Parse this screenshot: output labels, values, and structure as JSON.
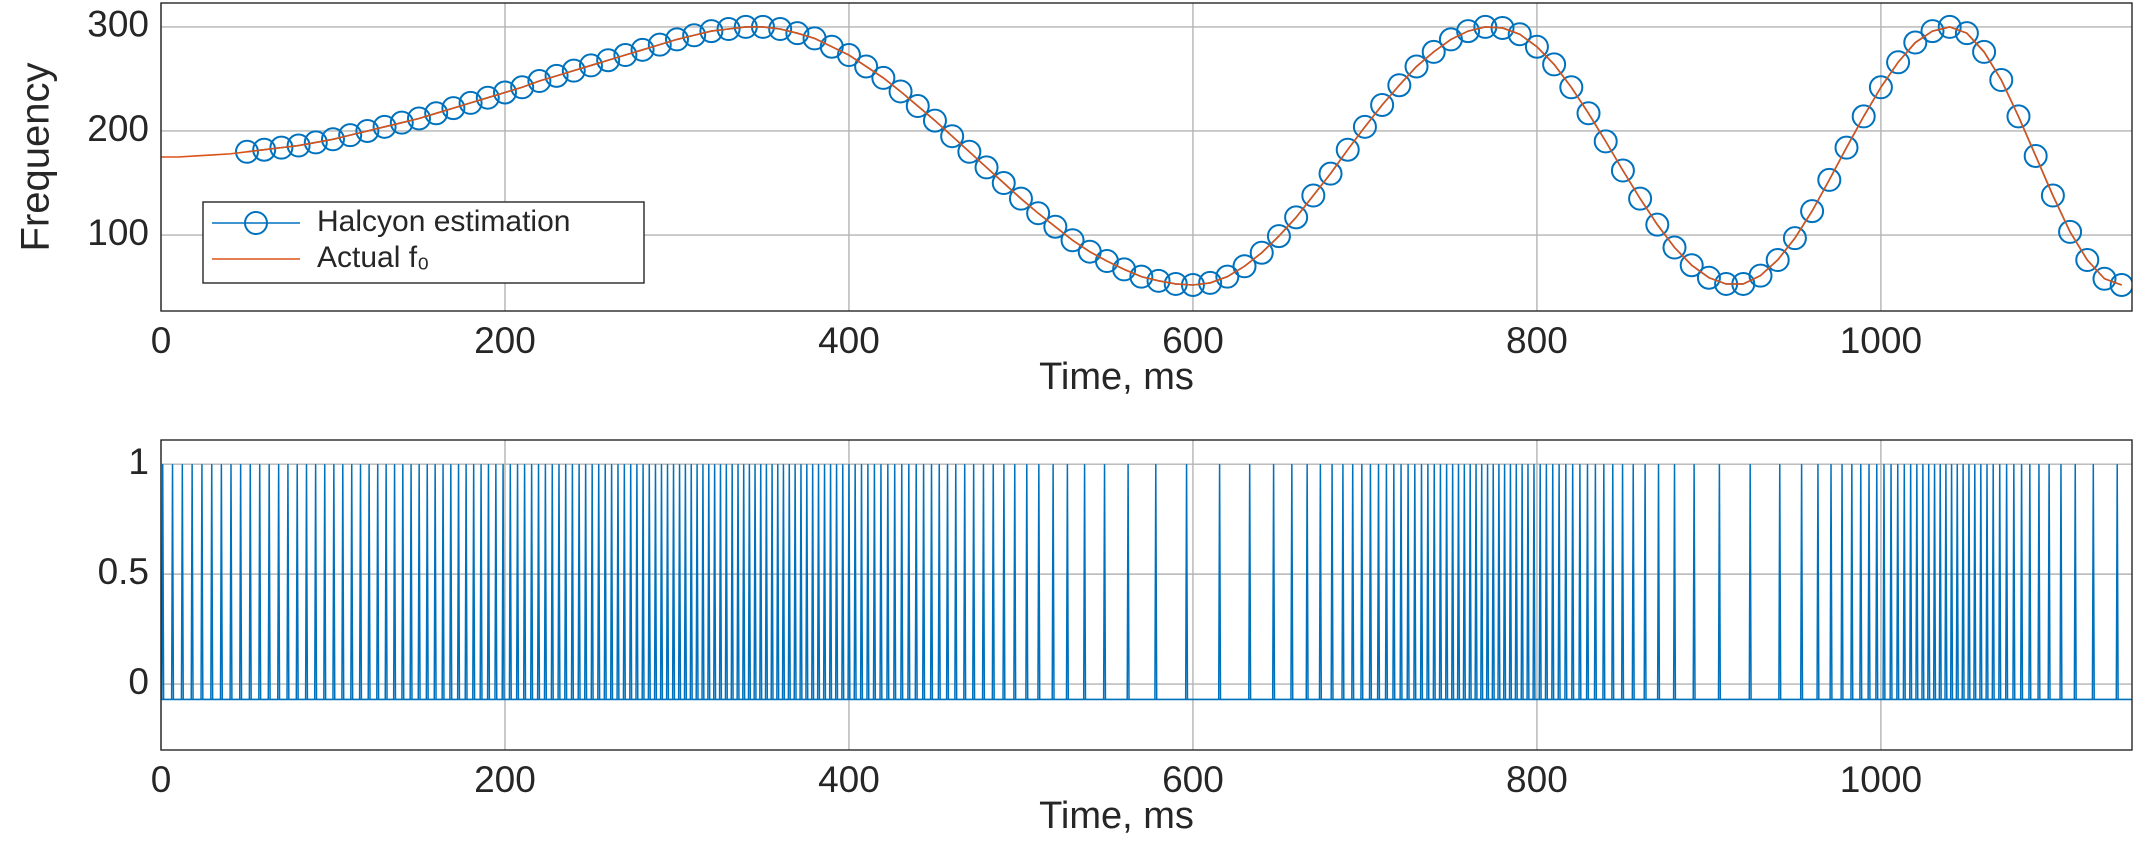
{
  "chart_data": [
    {
      "type": "line",
      "ylabel": "Frequency",
      "xlabel": "Time, ms",
      "xlim": [
        0,
        1146
      ],
      "ylim": [
        27,
        323
      ],
      "xticks": [
        0,
        200,
        400,
        600,
        800,
        1000
      ],
      "yticks": [
        100,
        200,
        300
      ],
      "grid": true,
      "legend": "west",
      "series": [
        {
          "name": "Halcyon estimation",
          "color": "#0072bd",
          "marker": "circle",
          "x": [
            50,
            60,
            70,
            80,
            90,
            100,
            110,
            120,
            130,
            140,
            150,
            160,
            170,
            180,
            190,
            200,
            210,
            220,
            230,
            240,
            250,
            260,
            270,
            280,
            290,
            300,
            310,
            320,
            330,
            340,
            350,
            360,
            370,
            380,
            390,
            400,
            410,
            420,
            430,
            440,
            450,
            460,
            470,
            480,
            490,
            500,
            510,
            520,
            530,
            540,
            550,
            560,
            570,
            580,
            590,
            600,
            610,
            620,
            630,
            640,
            650,
            660,
            670,
            680,
            690,
            700,
            710,
            720,
            730,
            740,
            750,
            760,
            770,
            780,
            790,
            800,
            810,
            820,
            830,
            840,
            850,
            860,
            870,
            880,
            890,
            900,
            910,
            920,
            930,
            940,
            950,
            960,
            970,
            980,
            990,
            1000,
            1010,
            1020,
            1030,
            1040,
            1050,
            1060,
            1070,
            1080,
            1090,
            1100,
            1110,
            1120,
            1130,
            1140
          ],
          "values": [
            180,
            182,
            184,
            186,
            189,
            192,
            196,
            200,
            204,
            208,
            212,
            217,
            222,
            227,
            232,
            237,
            242,
            248,
            253,
            258,
            263,
            268,
            273,
            278,
            283,
            288,
            292,
            296,
            298,
            300,
            300,
            298,
            294,
            289,
            281,
            273,
            262,
            251,
            238,
            224,
            210,
            195,
            180,
            165,
            150,
            135,
            121,
            108,
            95,
            84,
            75,
            67,
            60,
            56,
            53,
            52,
            54,
            60,
            70,
            83,
            99,
            117,
            138,
            159,
            182,
            204,
            225,
            244,
            262,
            276,
            288,
            296,
            300,
            299,
            293,
            281,
            264,
            242,
            217,
            190,
            162,
            135,
            110,
            88,
            71,
            59,
            53,
            53,
            61,
            76,
            97,
            123,
            153,
            184,
            214,
            242,
            266,
            285,
            296,
            300,
            294,
            276,
            249,
            214,
            176,
            138,
            103,
            76,
            58,
            52
          ]
        },
        {
          "name": "Actual f₀",
          "color": "#d95319",
          "x": [
            0,
            10,
            20,
            30,
            40,
            50,
            60,
            70,
            80,
            90,
            100,
            110,
            120,
            130,
            140,
            150,
            160,
            170,
            180,
            190,
            200,
            210,
            220,
            230,
            240,
            250,
            260,
            270,
            280,
            290,
            300,
            310,
            320,
            330,
            340,
            350,
            360,
            370,
            380,
            390,
            400,
            410,
            420,
            430,
            440,
            450,
            460,
            470,
            480,
            490,
            500,
            510,
            520,
            530,
            540,
            550,
            560,
            570,
            580,
            590,
            600,
            610,
            620,
            630,
            640,
            650,
            660,
            670,
            680,
            690,
            700,
            710,
            720,
            730,
            740,
            750,
            760,
            770,
            780,
            790,
            800,
            810,
            820,
            830,
            840,
            850,
            860,
            870,
            880,
            890,
            900,
            910,
            920,
            930,
            940,
            950,
            960,
            970,
            980,
            990,
            1000,
            1010,
            1020,
            1030,
            1040,
            1050,
            1060,
            1070,
            1080,
            1090,
            1100,
            1110,
            1120,
            1130,
            1140
          ],
          "values": [
            175,
            175,
            176,
            177,
            178,
            180,
            182,
            184,
            186,
            189,
            192,
            196,
            200,
            204,
            208,
            212,
            217,
            222,
            227,
            232,
            237,
            242,
            248,
            253,
            258,
            263,
            268,
            273,
            278,
            283,
            288,
            292,
            296,
            298,
            300,
            300,
            298,
            294,
            289,
            281,
            273,
            262,
            251,
            238,
            224,
            210,
            195,
            180,
            165,
            150,
            135,
            121,
            108,
            95,
            84,
            75,
            67,
            60,
            56,
            53,
            52,
            54,
            60,
            70,
            83,
            99,
            117,
            138,
            159,
            182,
            204,
            225,
            244,
            262,
            276,
            288,
            296,
            300,
            299,
            293,
            281,
            264,
            242,
            217,
            190,
            162,
            135,
            110,
            88,
            71,
            59,
            53,
            53,
            61,
            76,
            97,
            123,
            153,
            184,
            214,
            242,
            266,
            285,
            296,
            300,
            294,
            276,
            249,
            214,
            176,
            138,
            103,
            76,
            58,
            52
          ]
        }
      ]
    },
    {
      "type": "impulse",
      "xlabel": "Time, ms",
      "xlim": [
        0,
        1146
      ],
      "ylim": [
        -0.3,
        1.11
      ],
      "xticks": [
        0,
        200,
        400,
        600,
        800,
        1000
      ],
      "yticks": [
        0,
        0.5,
        1
      ],
      "grid": true,
      "series": [
        {
          "color": "#0072bd",
          "baseline": -0.07,
          "x": [
            1,
            6.7,
            12.4,
            18.1,
            23.8,
            29.5,
            35.1,
            40.7,
            46.3,
            51.9,
            57.4,
            62.9,
            68.4,
            73.8,
            79.2,
            84.6,
            89.9,
            95.2,
            100.5,
            105.7,
            110.9,
            116,
            121,
            126,
            130.9,
            135.8,
            140.6,
            145.4,
            150.1,
            154.8,
            159.4,
            164,
            168.5,
            173,
            177.4,
            181.8,
            186.1,
            190.4,
            194.7,
            198.9,
            203.1,
            207.3,
            211.4,
            215.5,
            219.5,
            223.5,
            227.5,
            231.4,
            235.3,
            239.2,
            243.1,
            246.9,
            250.7,
            254.5,
            258.3,
            262,
            265.7,
            269.4,
            273.1,
            276.7,
            280.3,
            283.9,
            287.5,
            291,
            294.5,
            298,
            301.5,
            304.9,
            308.3,
            311.7,
            315.1,
            318.5,
            321.9,
            325.3,
            328.7,
            332.1,
            335.5,
            338.8,
            342.1,
            345.4,
            348.7,
            352,
            355.3,
            358.6,
            361.9,
            365.3,
            368.7,
            372.1,
            375.5,
            378.9,
            382.3,
            385.8,
            389.3,
            392.8,
            396.4,
            400,
            403.6,
            407.3,
            411,
            414.8,
            418.6,
            422.6,
            426.6,
            430.7,
            434.8,
            439.1,
            443.4,
            448,
            452.5,
            457.3,
            462.1,
            467.3,
            472.5,
            478.2,
            483.9,
            490.1,
            496.4,
            503.4,
            510.4,
            518.7,
            527,
            537,
            548.6,
            562.3,
            578.4,
            596.3,
            615.5,
            633,
            646.9,
            657.5,
            666.4,
            674.1,
            680.9,
            687.2,
            692.9,
            698.2,
            703.2,
            707.9,
            712.5,
            716.8,
            721,
            725.1,
            729,
            732.9,
            736.6,
            740.3,
            743.9,
            747.5,
            751,
            754.4,
            757.8,
            761.2,
            764.6,
            767.9,
            771.3,
            774.6,
            777.9,
            781.2,
            784.6,
            788,
            791.4,
            794.8,
            798.3,
            801.9,
            805.5,
            809.2,
            812.9,
            816.8,
            820.8,
            825,
            829.4,
            834,
            838.9,
            844.1,
            849.8,
            856,
            862.9,
            870.7,
            880,
            891.4,
            906.1,
            924,
            941.2,
            953.9,
            963.4,
            971,
            977.4,
            983.1,
            988.3,
            993.1,
            997.6,
            1001.8,
            1005.9,
            1009.8,
            1013.6,
            1017.3,
            1020.9,
            1024.4,
            1027.8,
            1031.2,
            1034.5,
            1037.8,
            1041.1,
            1044.4,
            1047.8,
            1051.2,
            1054.6,
            1058.1,
            1061.7,
            1065.3,
            1069.1,
            1073.1,
            1077.3,
            1081.8,
            1086.6,
            1091.9,
            1097.8,
            1104.7,
            1113,
            1123.5,
            1137.4
          ],
          "values": [
            1,
            1,
            1,
            1,
            1,
            1,
            1,
            1,
            1,
            1,
            1,
            1,
            1,
            1,
            1,
            1,
            1,
            1,
            1,
            1,
            1,
            1,
            1,
            1,
            1,
            1,
            1,
            1,
            1,
            1,
            1,
            1,
            1,
            1,
            1,
            1,
            1,
            1,
            1,
            1,
            1,
            1,
            1,
            1,
            1,
            1,
            1,
            1,
            1,
            1,
            1,
            1,
            1,
            1,
            1,
            1,
            1,
            1,
            1,
            1,
            1,
            1,
            1,
            1,
            1,
            1,
            1,
            1,
            1,
            1,
            1,
            1,
            1,
            1,
            1,
            1,
            1,
            1,
            1,
            1,
            1,
            1,
            1,
            1,
            1,
            1,
            1,
            1,
            1,
            1,
            1,
            1,
            1,
            1,
            1,
            1,
            1,
            1,
            1,
            1,
            1,
            1,
            1,
            1,
            1,
            1,
            1,
            1,
            1,
            1,
            1,
            1,
            1,
            1,
            1,
            1,
            1,
            1,
            1,
            1,
            1,
            1,
            1,
            1,
            1,
            1,
            1,
            1,
            1,
            1,
            1,
            1,
            1,
            1,
            1,
            1,
            1,
            1,
            1,
            1,
            1,
            1,
            1,
            1,
            1,
            1,
            1,
            1,
            1,
            1,
            1,
            1,
            1,
            1,
            1,
            1,
            1,
            1,
            1,
            1,
            1,
            1,
            1,
            1,
            1,
            1,
            1,
            1,
            1,
            1,
            1,
            1,
            1,
            1,
            1,
            1,
            1,
            1,
            1,
            1,
            1,
            1,
            1,
            1,
            1,
            1,
            1,
            1,
            1,
            1,
            1,
            1,
            1,
            1,
            1,
            1,
            1,
            1,
            1,
            1,
            1,
            1,
            1,
            1,
            1,
            1,
            1,
            1,
            1,
            1,
            1,
            1,
            1,
            1,
            1,
            1,
            1,
            1,
            1,
            1,
            1
          ]
        }
      ]
    }
  ]
}
